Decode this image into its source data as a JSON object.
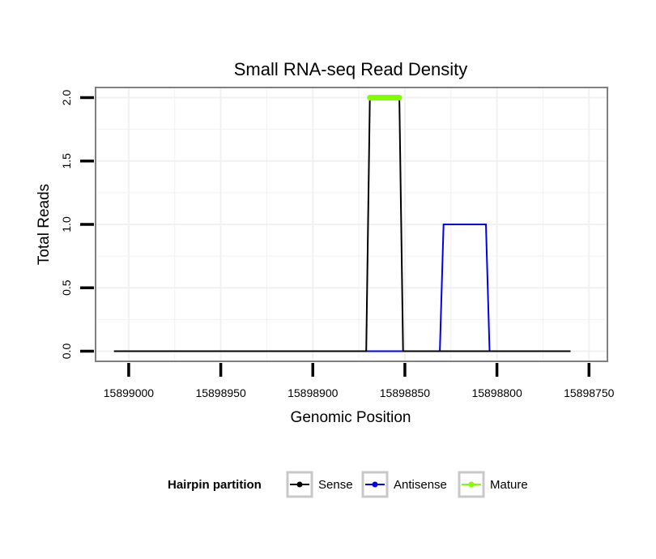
{
  "chart_data": {
    "type": "line",
    "title": "Small RNA-seq Read Density",
    "xlabel": "Genomic Position",
    "ylabel": "Total Reads",
    "x_reversed": true,
    "xlim": [
      15899018,
      15898740
    ],
    "ylim": [
      -0.08,
      2.08
    ],
    "x_ticks": [
      15899000,
      15898950,
      15898900,
      15898850,
      15898800,
      15898750
    ],
    "x_tick_labels": [
      "15899000",
      "15898950",
      "15898900",
      "15898850",
      "15898800",
      "15898750"
    ],
    "y_ticks": [
      0,
      0.5,
      1,
      1.5,
      2
    ],
    "y_tick_labels": [
      "0.0",
      "0.5",
      "1.0",
      "1.5",
      "2.0"
    ],
    "grid": true,
    "legend_position": "bottom",
    "legend_title": "Hairpin partition",
    "series": [
      {
        "name": "Sense",
        "color": "#000000",
        "x": [
          15899008,
          15898871,
          15898869,
          15898853,
          15898851,
          15898760
        ],
        "y": [
          0,
          0,
          2,
          2,
          0,
          0
        ]
      },
      {
        "name": "Antisense",
        "color": "#0000ee",
        "x": [
          15898871,
          15898851,
          15898831,
          15898829,
          15898806,
          15898804,
          15898760
        ],
        "y": [
          0,
          0,
          0,
          1,
          1,
          0,
          0
        ]
      },
      {
        "name": "Mature",
        "color": "#7fff00",
        "x": [
          15898869,
          15898853
        ],
        "y": [
          2,
          2
        ]
      }
    ]
  }
}
